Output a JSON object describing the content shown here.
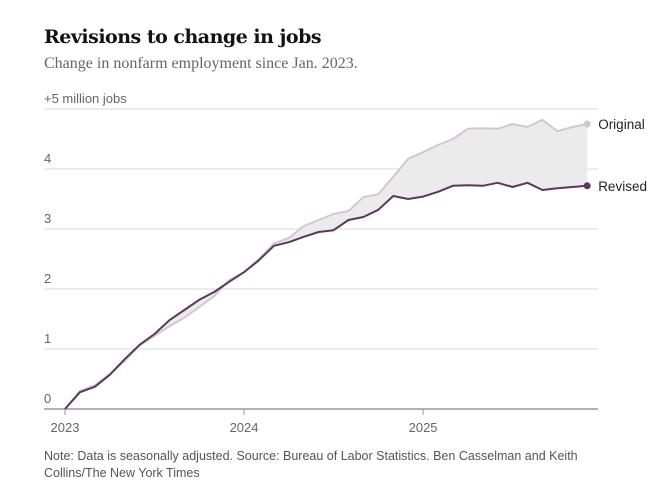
{
  "chart_data": {
    "type": "line",
    "title": "Revisions to change in jobs",
    "subtitle": "Change in nonfarm employment since Jan. 2023.",
    "x_start": "2023-01",
    "x_frequency": "monthly",
    "x_ticks": [
      "2023",
      "2024",
      "2025"
    ],
    "y_ticks": [
      "0",
      "1",
      "2",
      "3",
      "4",
      "+5 million jobs"
    ],
    "ylim": [
      0,
      5
    ],
    "grid": true,
    "shaded_gap_between_series": true,
    "colors": {
      "original": "#d5c6d4",
      "revised": "#5c3560",
      "gap": "#ebebeb",
      "grid": "#e6e6e6",
      "axis": "#999999"
    },
    "series": [
      {
        "name": "Original",
        "values": [
          0,
          0.3,
          0.4,
          0.58,
          0.8,
          1.06,
          1.22,
          1.38,
          1.52,
          1.7,
          1.88,
          2.15,
          2.28,
          2.5,
          2.76,
          2.85,
          3.05,
          3.15,
          3.25,
          3.3,
          3.53,
          3.58,
          3.87,
          4.17,
          4.28,
          4.4,
          4.5,
          4.67,
          4.68,
          4.67,
          4.75,
          4.7,
          4.82,
          4.63,
          4.7,
          4.75
        ]
      },
      {
        "name": "Revised",
        "values": [
          0,
          0.28,
          0.37,
          0.57,
          0.83,
          1.07,
          1.25,
          1.48,
          1.65,
          1.82,
          1.95,
          2.12,
          2.28,
          2.48,
          2.72,
          2.78,
          2.87,
          2.95,
          2.98,
          3.15,
          3.2,
          3.32,
          3.55,
          3.5,
          3.54,
          3.62,
          3.72,
          3.73,
          3.72,
          3.77,
          3.7,
          3.77,
          3.65,
          3.68,
          3.7,
          3.72
        ]
      }
    ]
  },
  "note": "Note: Data is seasonally adjusted.  Source: Bureau of Labor Statistics.  Ben Casselman and Keith Collins/The New York Times"
}
